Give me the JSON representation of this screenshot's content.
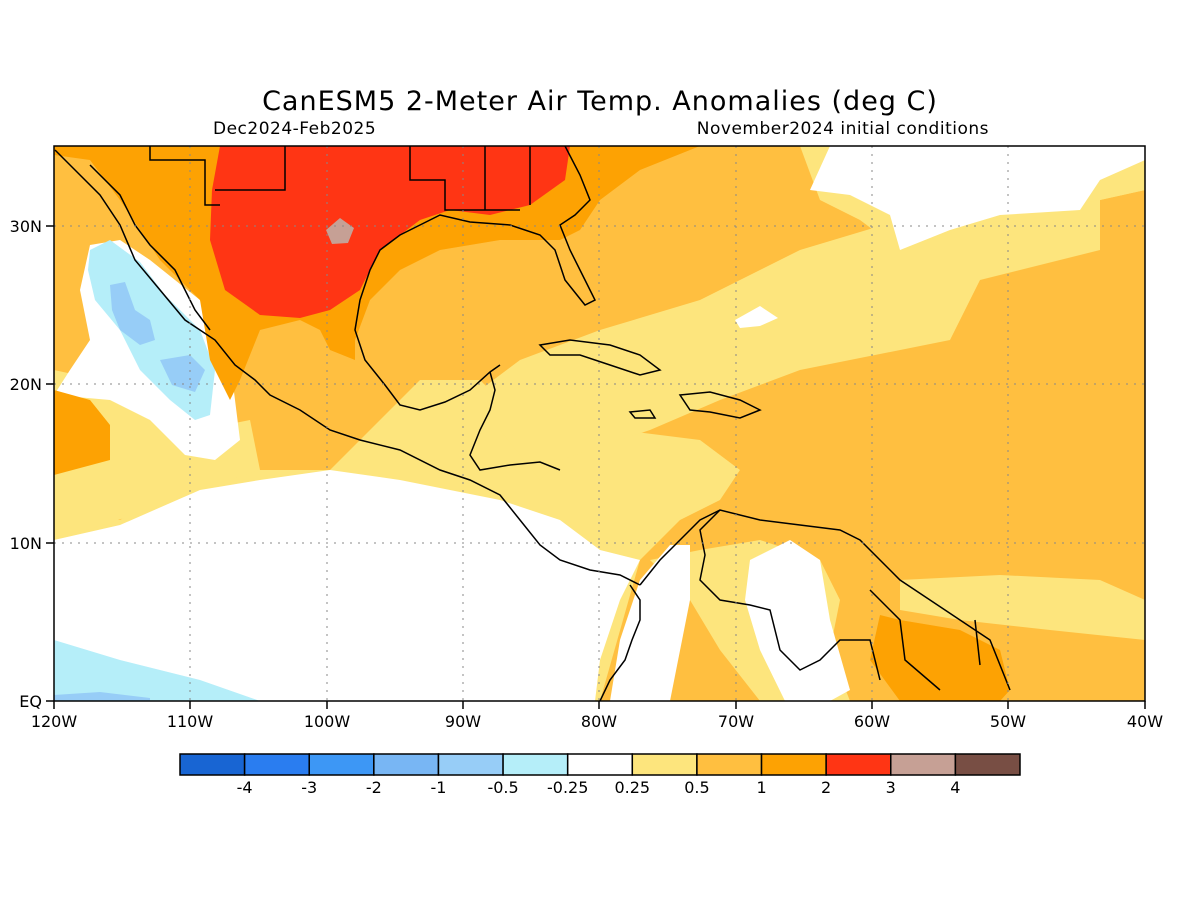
{
  "title": "CanESM5 2-Meter Air Temp. Anomalies (deg C)",
  "subtitle_left": "Dec2024-Feb2025",
  "subtitle_right": "November2024 initial conditions",
  "map": {
    "lon_labels": [
      "120W",
      "110W",
      "100W",
      "90W",
      "80W",
      "70W",
      "60W",
      "50W",
      "40W"
    ],
    "lat_labels": [
      "30N",
      "20N",
      "10N",
      "EQ"
    ],
    "lon_range": [
      -120,
      -40
    ],
    "lat_range": [
      0,
      35
    ],
    "grid": "dotted"
  },
  "colorbar": {
    "colors": [
      "#1865d3",
      "#2a7df0",
      "#3d97f5",
      "#78b6f4",
      "#97cdf7",
      "#b5eef9",
      "#ffffff",
      "#fde57d",
      "#ffbf40",
      "#fda203",
      "#ff3514",
      "#c6a095",
      "#784e44"
    ],
    "labels": [
      "-4",
      "-3",
      "-2",
      "-1",
      "-0.5",
      "-0.25",
      "0.25",
      "0.5",
      "1",
      "2",
      "3",
      "4"
    ]
  }
}
